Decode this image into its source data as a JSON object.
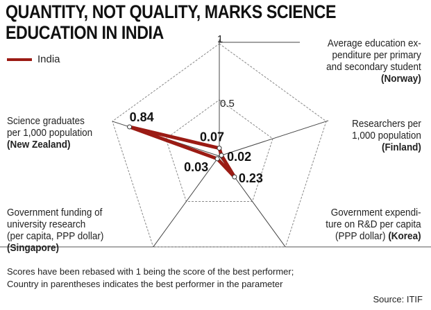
{
  "title_lines": [
    "QUANTITY, NOT QUALITY, MARKS SCIENCE",
    "EDUCATION IN INDIA"
  ],
  "chart_data": {
    "type": "radar",
    "title": "QUANTITY, NOT QUALITY, MARKS SCIENCE EDUCATION IN INDIA",
    "axes": [
      {
        "label": [
          "Average education ex-",
          "penditure per primary",
          "and secondary student"
        ],
        "best": "(Norway)"
      },
      {
        "label": [
          "Researchers per",
          "1,000 population"
        ],
        "best": "(Finland)"
      },
      {
        "label": [
          "Government expendi-",
          "ture on R&D per capita",
          "(PPP dollar)"
        ],
        "best": "(Korea)"
      },
      {
        "label": [
          "Government funding of",
          "university research",
          "(per capita, PPP dollar)"
        ],
        "best": "(Singapore)"
      },
      {
        "label": [
          "Science graduates",
          "per 1,000 population"
        ],
        "best": "(New Zealand)"
      }
    ],
    "series": [
      {
        "name": "India",
        "values": [
          0.07,
          0.02,
          0.23,
          0.03,
          0.84
        ],
        "labels": [
          "0.07",
          "0.02",
          "0.23",
          "0.03",
          "0.84"
        ],
        "color": "#9b1b14"
      }
    ],
    "rlim": [
      0,
      1
    ],
    "ticks": [
      "1",
      "0.5"
    ],
    "legend": "top-left"
  },
  "note_lines": [
    "Scores have been rebased with 1 being the score of the best performer;",
    "Country in parentheses indicates the best performer in the parameter"
  ],
  "source": "Source: ITIF"
}
